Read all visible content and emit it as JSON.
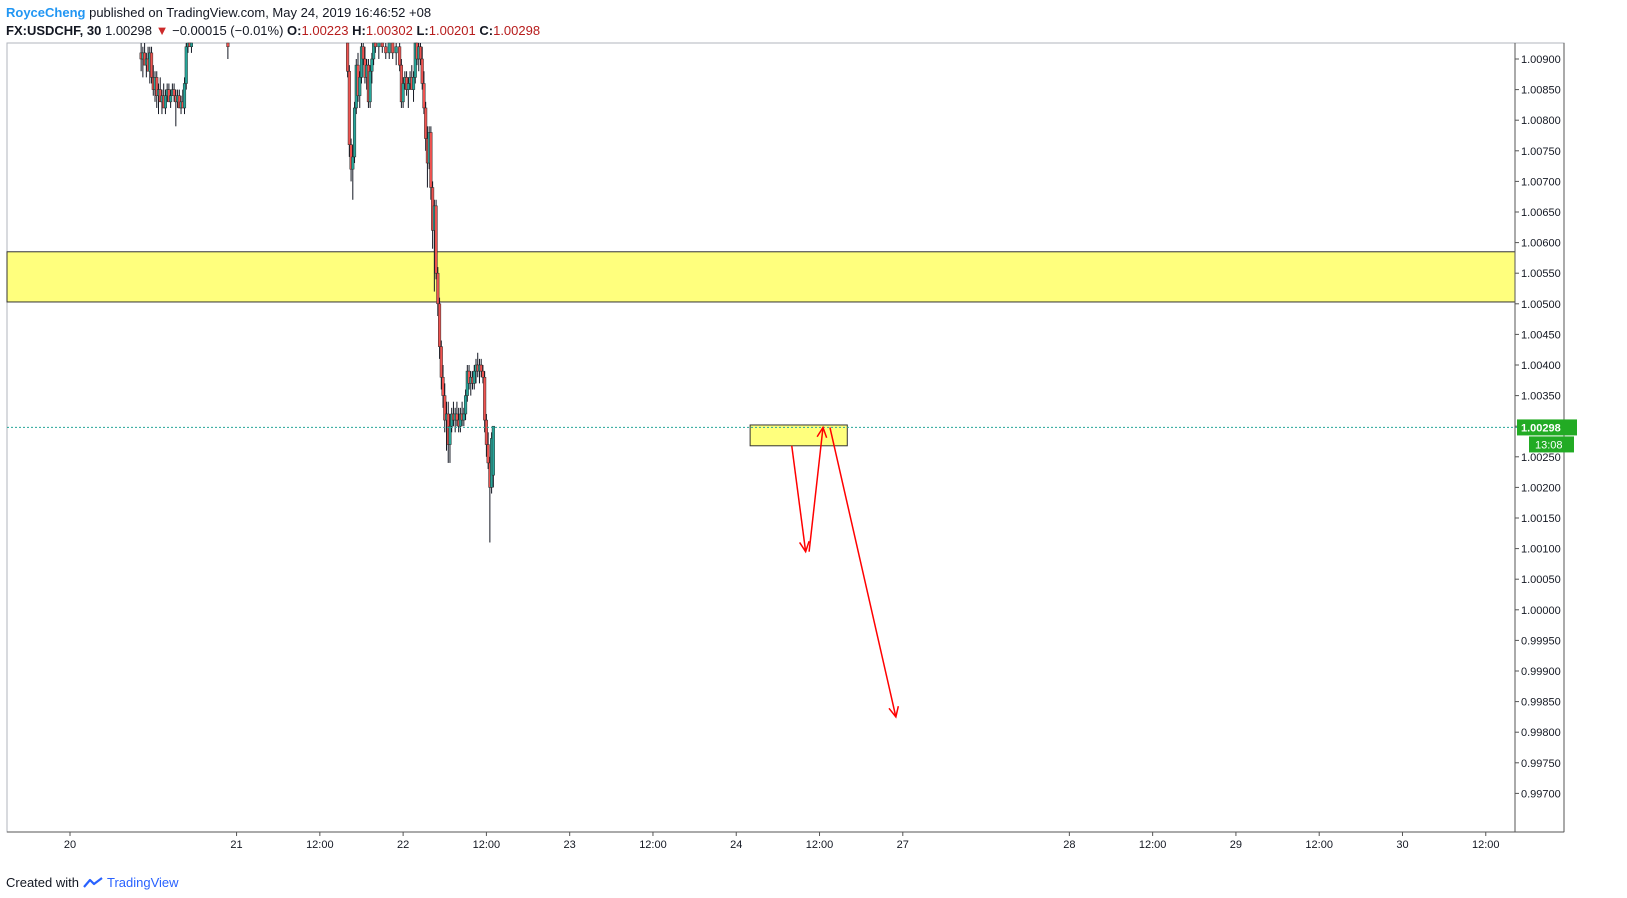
{
  "header": {
    "author": "RoyceCheng",
    "published": "published on TradingView.com, May 24, 2019 16:46:52 +08",
    "symbol": "FX:USDCHF, 30",
    "last": "1.00298",
    "change_arrow": "▼",
    "change": "−0.00015 (−0.01%)",
    "o_label": "O:",
    "o_value": "1.00223",
    "h_label": "H:",
    "h_value": "1.00302",
    "l_label": "L:",
    "l_value": "1.00201",
    "c_label": "C:",
    "c_value": "1.00298"
  },
  "footer": {
    "created_with": "Created with",
    "brand": "TradingView"
  },
  "price_tag": {
    "value": "1.00298",
    "countdown": "13:08"
  },
  "colors": {
    "up": "#26a69a",
    "down": "#ef5350",
    "wick": "#131722",
    "zone": "#ffff66",
    "arrow": "#ff0000",
    "price_line": "#26a69a",
    "tag": "#22ab24"
  },
  "chart_data": {
    "type": "candlestick",
    "symbol": "FX:USDCHF",
    "interval": "30",
    "ylim": [
      0.99675,
      1.00915
    ],
    "y_ticks": [
      "1.00900",
      "1.00850",
      "1.00800",
      "1.00750",
      "1.00700",
      "1.00650",
      "1.00600",
      "1.00550",
      "1.00500",
      "1.00450",
      "1.00400",
      "1.00350",
      "1.00300",
      "1.00250",
      "1.00200",
      "1.00150",
      "1.00100",
      "1.00050",
      "1.00000",
      "0.99950",
      "0.99900",
      "0.99850",
      "0.99800",
      "0.99750",
      "0.99700"
    ],
    "x_ticks": [
      "20",
      "21",
      "12:00",
      "22",
      "12:00",
      "23",
      "12:00",
      "24",
      "12:00",
      "27",
      "28",
      "12:00",
      "29",
      "12:00",
      "30",
      "12:00"
    ],
    "x_tick_index": [
      0,
      48,
      72,
      96,
      120,
      144,
      168,
      192,
      216,
      240,
      288,
      312,
      336,
      360,
      384,
      408
    ],
    "current_price": 1.00298,
    "zones": [
      {
        "x0": -20,
        "x1": 450,
        "y0": 1.00503,
        "y1": 1.00585
      },
      {
        "x0": 196,
        "x1": 224,
        "y0": 1.00268,
        "y1": 1.00302
      }
    ],
    "arrows": [
      {
        "from": [
          208,
          1.00268
        ],
        "to": [
          212,
          1.00095
        ]
      },
      {
        "from": [
          213,
          1.00095
        ],
        "to": [
          217,
          1.00298
        ]
      },
      {
        "from": [
          219,
          1.00298
        ],
        "to": [
          238,
          0.99825
        ]
      }
    ],
    "candles": [
      [
        20.5,
        1.0091,
        1.0093,
        1.0088,
        1.009
      ],
      [
        21,
        1.009,
        1.0092,
        1.0087,
        1.0091
      ],
      [
        21.5,
        1.0091,
        1.0093,
        1.0089,
        1.0089
      ],
      [
        22,
        1.0089,
        1.0091,
        1.0087,
        1.009
      ],
      [
        22.5,
        1.009,
        1.0092,
        1.0088,
        1.0088
      ],
      [
        23,
        1.0088,
        1.0092,
        1.0086,
        1.0091
      ],
      [
        23.5,
        1.0091,
        1.0092,
        1.0086,
        1.0087
      ],
      [
        24,
        1.0087,
        1.0089,
        1.0084,
        1.0085
      ],
      [
        24.5,
        1.0085,
        1.0088,
        1.0083,
        1.0087
      ],
      [
        25,
        1.0087,
        1.0088,
        1.0082,
        1.0084
      ],
      [
        25.5,
        1.0084,
        1.0086,
        1.0081,
        1.0085
      ],
      [
        26,
        1.0085,
        1.0087,
        1.0083,
        1.0083
      ],
      [
        26.5,
        1.0083,
        1.0085,
        1.0081,
        1.0084
      ],
      [
        27,
        1.0084,
        1.0086,
        1.0082,
        1.0082
      ],
      [
        27.5,
        1.0082,
        1.0085,
        1.0081,
        1.0084
      ],
      [
        28,
        1.0084,
        1.0086,
        1.0083,
        1.0085
      ],
      [
        28.5,
        1.0085,
        1.0086,
        1.0083,
        1.0083
      ],
      [
        29,
        1.0083,
        1.0085,
        1.0082,
        1.0084
      ],
      [
        29.5,
        1.0084,
        1.0086,
        1.0084,
        1.0085
      ],
      [
        30,
        1.0085,
        1.0086,
        1.0083,
        1.0084
      ],
      [
        30.5,
        1.0084,
        1.0085,
        1.0079,
        1.0083
      ],
      [
        31,
        1.0083,
        1.0085,
        1.0082,
        1.0084
      ],
      [
        31.5,
        1.0084,
        1.0085,
        1.0082,
        1.0082
      ],
      [
        32,
        1.0082,
        1.0084,
        1.0081,
        1.0083
      ],
      [
        32.5,
        1.0083,
        1.0085,
        1.0082,
        1.0082
      ],
      [
        33,
        1.0082,
        1.0087,
        1.0081,
        1.0086
      ],
      [
        33.5,
        1.0086,
        1.0093,
        1.0085,
        1.0092
      ],
      [
        34,
        1.0092,
        1.0094,
        1.0091,
        1.0093
      ],
      [
        34.5,
        1.0093,
        1.0094,
        1.0092,
        1.0092
      ],
      [
        35,
        1.0092,
        1.0094,
        1.0091,
        1.0093
      ],
      [
        45.5,
        1.0093,
        1.0094,
        1.009,
        1.0092
      ],
      [
        80,
        1.0093,
        1.0094,
        1.0087,
        1.0088
      ],
      [
        80.5,
        1.0088,
        1.0089,
        1.0074,
        1.0076
      ],
      [
        81,
        1.0076,
        1.0077,
        1.007,
        1.0072
      ],
      [
        81.5,
        1.0072,
        1.0076,
        1.0067,
        1.0074
      ],
      [
        82,
        1.0074,
        1.0083,
        1.0073,
        1.0082
      ],
      [
        82.5,
        1.0082,
        1.009,
        1.0081,
        1.0089
      ],
      [
        83,
        1.0089,
        1.0091,
        1.0083,
        1.0084
      ],
      [
        83.5,
        1.0084,
        1.0088,
        1.0082,
        1.0087
      ],
      [
        84,
        1.0087,
        1.0093,
        1.0086,
        1.0092
      ],
      [
        84.5,
        1.0092,
        1.0094,
        1.0089,
        1.009
      ],
      [
        85,
        1.009,
        1.0092,
        1.0086,
        1.0087
      ],
      [
        85.5,
        1.0087,
        1.009,
        1.0085,
        1.0089
      ],
      [
        86,
        1.0089,
        1.009,
        1.0082,
        1.0083
      ],
      [
        86.5,
        1.0083,
        1.0089,
        1.0082,
        1.0088
      ],
      [
        87,
        1.0088,
        1.0091,
        1.0086,
        1.009
      ],
      [
        87.5,
        1.009,
        1.0094,
        1.0089,
        1.0093
      ],
      [
        88,
        1.0093,
        1.0094,
        1.0091,
        1.0092
      ],
      [
        89,
        1.0092,
        1.0094,
        1.009,
        1.0093
      ],
      [
        90,
        1.0093,
        1.0094,
        1.0091,
        1.0092
      ],
      [
        91,
        1.0092,
        1.0094,
        1.009,
        1.0091
      ],
      [
        92,
        1.0091,
        1.0094,
        1.009,
        1.0093
      ],
      [
        93,
        1.0093,
        1.0094,
        1.009,
        1.0091
      ],
      [
        94,
        1.0091,
        1.0093,
        1.0089,
        1.0092
      ],
      [
        95,
        1.0092,
        1.0094,
        1.0088,
        1.0089
      ],
      [
        95.5,
        1.0089,
        1.009,
        1.0082,
        1.0083
      ],
      [
        96,
        1.0083,
        1.0087,
        1.0082,
        1.0086
      ],
      [
        96.5,
        1.0086,
        1.0088,
        1.0085,
        1.0087
      ],
      [
        97,
        1.0087,
        1.0088,
        1.0084,
        1.0085
      ],
      [
        97.5,
        1.0085,
        1.0087,
        1.0082,
        1.0086
      ],
      [
        98,
        1.0086,
        1.0088,
        1.0085,
        1.0087
      ],
      [
        98.5,
        1.0087,
        1.0089,
        1.0085,
        1.0085
      ],
      [
        99,
        1.0085,
        1.0088,
        1.0083,
        1.0087
      ],
      [
        99.5,
        1.0087,
        1.0094,
        1.0086,
        1.0093
      ],
      [
        100,
        1.0093,
        1.0094,
        1.0089,
        1.009
      ],
      [
        100.5,
        1.009,
        1.0093,
        1.0088,
        1.0092
      ],
      [
        101,
        1.0092,
        1.0094,
        1.0089,
        1.009
      ],
      [
        101.5,
        1.009,
        1.0092,
        1.0085,
        1.0086
      ],
      [
        102,
        1.0086,
        1.0088,
        1.0081,
        1.0082
      ],
      [
        102.5,
        1.0082,
        1.0083,
        1.0075,
        1.0077
      ],
      [
        103,
        1.0077,
        1.0079,
        1.0069,
        1.0073
      ],
      [
        103.5,
        1.0073,
        1.0079,
        1.0072,
        1.0078
      ],
      [
        104,
        1.0078,
        1.0079,
        1.0067,
        1.0069
      ],
      [
        104.5,
        1.0069,
        1.007,
        1.0059,
        1.0062
      ],
      [
        105,
        1.0062,
        1.0067,
        1.0052,
        1.0066
      ],
      [
        105.5,
        1.0066,
        1.0067,
        1.0054,
        1.0055
      ],
      [
        106,
        1.0055,
        1.0056,
        1.0048,
        1.005
      ],
      [
        106.5,
        1.005,
        1.0051,
        1.0041,
        1.0043
      ],
      [
        107,
        1.0043,
        1.0044,
        1.0036,
        1.0038
      ],
      [
        107.5,
        1.0038,
        1.004,
        1.0033,
        1.0035
      ],
      [
        108,
        1.0035,
        1.0037,
        1.0029,
        1.0031
      ],
      [
        108.5,
        1.0031,
        1.0034,
        1.0026,
        1.0032
      ],
      [
        109,
        1.0032,
        1.0034,
        1.0024,
        1.0027
      ],
      [
        109.5,
        1.0027,
        1.0032,
        1.0024,
        1.003
      ],
      [
        110,
        1.003,
        1.0033,
        1.0029,
        1.0032
      ],
      [
        110.5,
        1.0032,
        1.0034,
        1.003,
        1.0031
      ],
      [
        111,
        1.0031,
        1.0033,
        1.0029,
        1.0032
      ],
      [
        111.5,
        1.0032,
        1.0034,
        1.003,
        1.0031
      ],
      [
        112,
        1.0031,
        1.0033,
        1.0029,
        1.003
      ],
      [
        112.5,
        1.003,
        1.0033,
        1.0029,
        1.0032
      ],
      [
        113,
        1.0032,
        1.0034,
        1.003,
        1.0031
      ],
      [
        113.5,
        1.0031,
        1.0033,
        1.003,
        1.0032
      ],
      [
        114,
        1.0032,
        1.0036,
        1.0031,
        1.0035
      ],
      [
        114.5,
        1.0035,
        1.004,
        1.0034,
        1.0039
      ],
      [
        115,
        1.0039,
        1.004,
        1.0036,
        1.0037
      ],
      [
        115.5,
        1.0037,
        1.0039,
        1.0035,
        1.0038
      ],
      [
        116,
        1.0038,
        1.0039,
        1.0036,
        1.0037
      ],
      [
        116.5,
        1.0037,
        1.004,
        1.0036,
        1.0039
      ],
      [
        117,
        1.0039,
        1.0041,
        1.0037,
        1.004
      ],
      [
        117.5,
        1.004,
        1.0042,
        1.0038,
        1.0039
      ],
      [
        118,
        1.0039,
        1.0041,
        1.0037,
        1.004
      ],
      [
        118.5,
        1.004,
        1.0041,
        1.0038,
        1.0039
      ],
      [
        119,
        1.0039,
        1.004,
        1.0037,
        1.0038
      ],
      [
        119.5,
        1.0038,
        1.0039,
        1.0029,
        1.0031
      ],
      [
        120,
        1.0031,
        1.0032,
        1.0025,
        1.0027
      ],
      [
        120.5,
        1.0027,
        1.0029,
        1.0023,
        1.0024
      ],
      [
        121,
        1.0024,
        1.0025,
        1.0011,
        1.002
      ],
      [
        121.5,
        1.002,
        1.0029,
        1.0019,
        1.0028
      ],
      [
        122,
        1.0022,
        1.003,
        1.002,
        1.003
      ]
    ]
  }
}
